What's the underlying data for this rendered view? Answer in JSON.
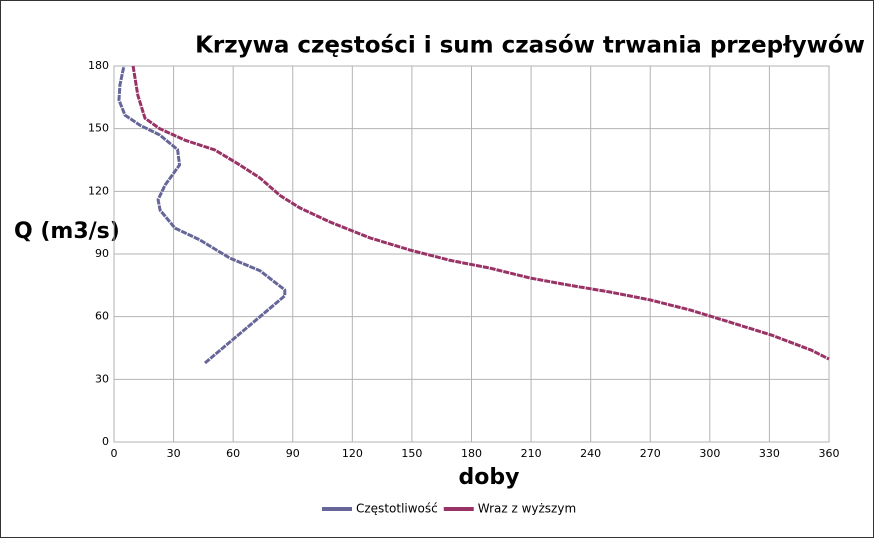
{
  "chart_data": {
    "type": "line",
    "title": "Krzywa częstości i sum czasów trwania przepływów",
    "x_label": "doby",
    "y_label": "Q (m3/s)",
    "xlim": [
      0,
      360
    ],
    "xticks": [
      0,
      30,
      60,
      90,
      120,
      150,
      180,
      210,
      240,
      270,
      300,
      330,
      360
    ],
    "ylim": [
      0,
      180
    ],
    "yticks": [
      0,
      30,
      60,
      90,
      120,
      150,
      180
    ],
    "grid": true,
    "legend": "bottom",
    "series": [
      {
        "name": "Częstotliwość",
        "color": "#666699",
        "x": [
          45.8,
          86,
          86,
          73.5,
          58.4,
          43.3,
          30.7,
          23.2,
          22.2,
          25.7,
          33,
          32,
          23,
          13,
          5.5,
          2.5,
          3,
          5
        ],
        "values": [
          37.8,
          70,
          72.8,
          82,
          88,
          96.7,
          102.4,
          111,
          116,
          123,
          132.6,
          140,
          147,
          151.7,
          156.5,
          163.7,
          171,
          180
        ]
      },
      {
        "name": "Wraz z wyższym",
        "color": "#993366",
        "x": [
          9.6,
          12,
          15.6,
          23,
          35.7,
          50.8,
          63.4,
          73.5,
          83.6,
          93.7,
          108.8,
          128.9,
          149,
          169,
          189,
          209.5,
          229.6,
          249.7,
          270,
          290,
          310,
          331,
          351,
          360
        ],
        "values": [
          180,
          166,
          155,
          150,
          144.5,
          139.8,
          132.6,
          126.4,
          118,
          112,
          105.3,
          97.7,
          91.9,
          87,
          83.3,
          78.5,
          75,
          71.8,
          68,
          63.2,
          57.4,
          51.2,
          44,
          39.7
        ]
      }
    ]
  }
}
